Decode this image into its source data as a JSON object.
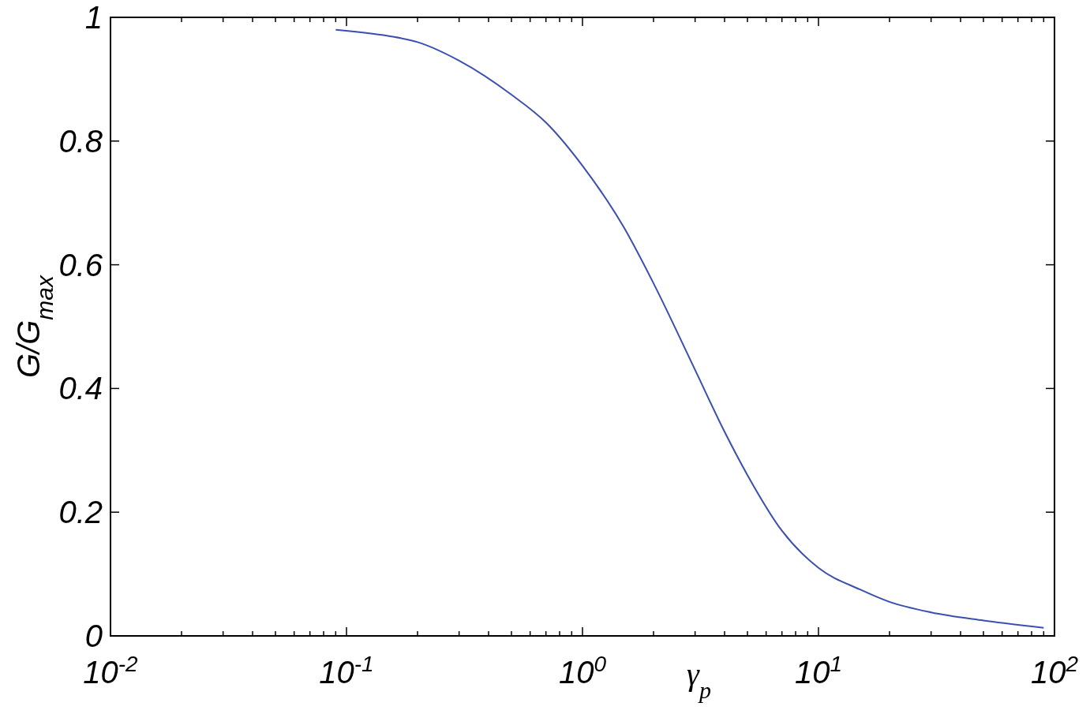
{
  "chart_data": {
    "type": "line",
    "xlabel": "γ$_{p}$",
    "ylabel": "G/G$_{max}$",
    "log": "x",
    "xlim": [
      0.01,
      100
    ],
    "ylim": [
      0,
      1
    ],
    "xticks": [
      {
        "value": 0.01,
        "label": "10$^{-2}$"
      },
      {
        "value": 0.02,
        "label": null
      },
      {
        "value": 0.03,
        "label": null
      },
      {
        "value": 0.04,
        "label": null
      },
      {
        "value": 0.05,
        "label": null
      },
      {
        "value": 0.06,
        "label": null
      },
      {
        "value": 0.07,
        "label": null
      },
      {
        "value": 0.08,
        "label": null
      },
      {
        "value": 0.09,
        "label": null
      },
      {
        "value": 0.1,
        "label": "10$^{-1}$"
      },
      {
        "value": 0.2,
        "label": null
      },
      {
        "value": 0.3,
        "label": null
      },
      {
        "value": 0.4,
        "label": null
      },
      {
        "value": 0.5,
        "label": null
      },
      {
        "value": 0.6,
        "label": null
      },
      {
        "value": 0.7,
        "label": null
      },
      {
        "value": 0.8,
        "label": null
      },
      {
        "value": 0.9,
        "label": null
      },
      {
        "value": 1,
        "label": "10$^{0}$"
      },
      {
        "value": 2,
        "label": null
      },
      {
        "value": 3,
        "label": null
      },
      {
        "value": 4,
        "label": null
      },
      {
        "value": 5,
        "label": null
      },
      {
        "value": 6,
        "label": null
      },
      {
        "value": 7,
        "label": null
      },
      {
        "value": 8,
        "label": null
      },
      {
        "value": 9,
        "label": null
      },
      {
        "value": 10,
        "label": "10$^{1}$"
      },
      {
        "value": 20,
        "label": null
      },
      {
        "value": 30,
        "label": null
      },
      {
        "value": 40,
        "label": null
      },
      {
        "value": 50,
        "label": null
      },
      {
        "value": 60,
        "label": null
      },
      {
        "value": 70,
        "label": null
      },
      {
        "value": 80,
        "label": null
      },
      {
        "value": 90,
        "label": null
      },
      {
        "value": 100,
        "label": "10$^{2}$"
      }
    ],
    "yticks": [
      0,
      0.2,
      0.4,
      0.6,
      0.8,
      1
    ],
    "marker": "none",
    "line_style": "solid",
    "series": [
      {
        "color": "#3a4fb0",
        "x": [
          0.09,
          0.15,
          0.2,
          0.3,
          0.5,
          0.7,
          1,
          1.5,
          2,
          3,
          4,
          5,
          7,
          10,
          15,
          20,
          30,
          50,
          90
        ],
        "values": [
          0.98,
          0.97,
          0.96,
          0.93,
          0.875,
          0.83,
          0.76,
          0.66,
          0.57,
          0.43,
          0.33,
          0.26,
          0.17,
          0.11,
          0.075,
          0.055,
          0.038,
          0.025,
          0.013
        ]
      }
    ]
  }
}
